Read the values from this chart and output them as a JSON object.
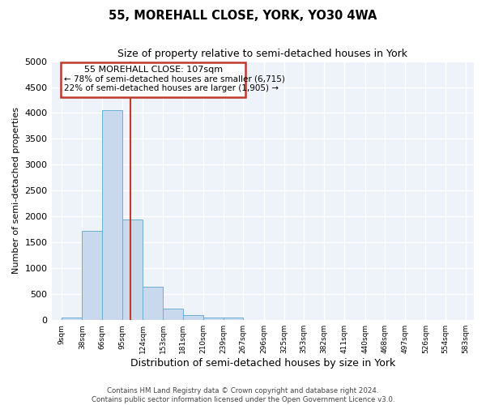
{
  "title": "55, MOREHALL CLOSE, YORK, YO30 4WA",
  "subtitle": "Size of property relative to semi-detached houses in York",
  "xlabel": "Distribution of semi-detached houses by size in York",
  "ylabel": "Number of semi-detached properties",
  "footer1": "Contains HM Land Registry data © Crown copyright and database right 2024.",
  "footer2": "Contains public sector information licensed under the Open Government Licence v3.0.",
  "annotation_title": "55 MOREHALL CLOSE: 107sqm",
  "annotation_line1": "← 78% of semi-detached houses are smaller (6,715)",
  "annotation_line2": "22% of semi-detached houses are larger (1,905) →",
  "bar_edges": [
    9,
    38,
    66,
    95,
    124,
    153,
    181,
    210,
    239,
    267,
    296,
    325,
    353,
    382,
    411,
    440,
    468,
    497,
    526,
    554,
    583
  ],
  "bar_heights": [
    50,
    1720,
    4050,
    1950,
    650,
    230,
    90,
    50,
    50,
    0,
    0,
    0,
    0,
    0,
    0,
    0,
    0,
    0,
    0,
    0
  ],
  "bar_color": "#c8d9ed",
  "bar_edge_color": "#6baed6",
  "vline_color": "#c0392b",
  "vline_x": 107,
  "annotation_box_color": "#c0392b",
  "bg_color": "#eef2f9",
  "ylim": [
    0,
    5000
  ],
  "yticks": [
    0,
    500,
    1000,
    1500,
    2000,
    2500,
    3000,
    3500,
    4000,
    4500,
    5000
  ],
  "grid_color": "#ffffff",
  "tick_labels": [
    "9sqm",
    "38sqm",
    "66sqm",
    "95sqm",
    "124sqm",
    "153sqm",
    "181sqm",
    "210sqm",
    "239sqm",
    "267sqm",
    "296sqm",
    "325sqm",
    "353sqm",
    "382sqm",
    "411sqm",
    "440sqm",
    "468sqm",
    "497sqm",
    "526sqm",
    "554sqm",
    "583sqm"
  ]
}
